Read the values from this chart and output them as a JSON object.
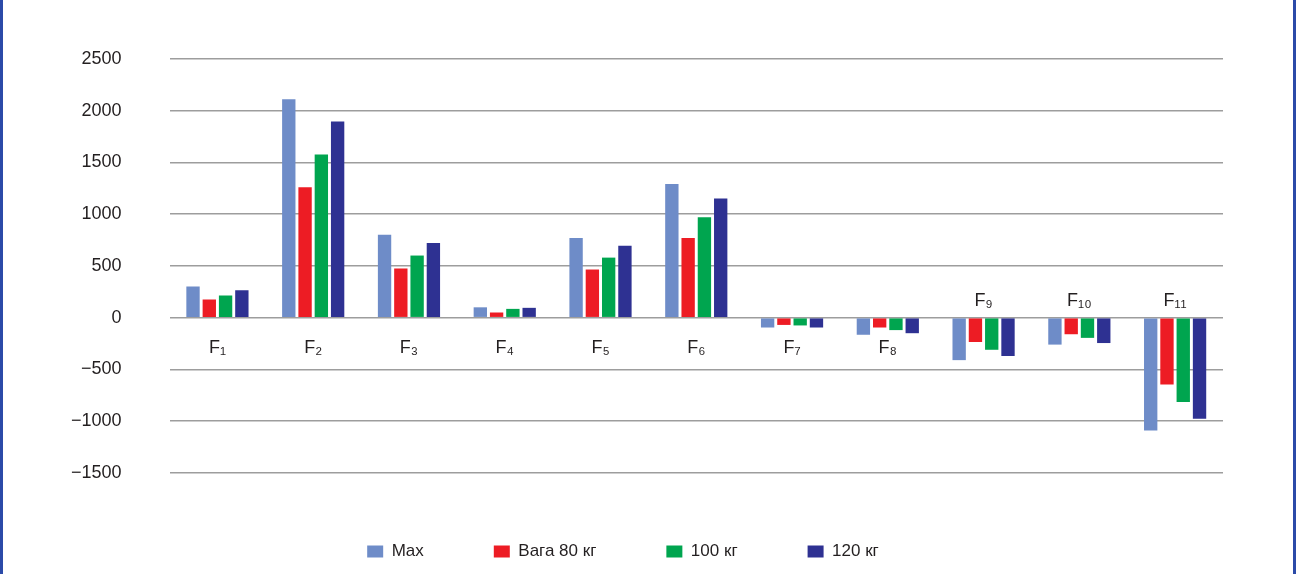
{
  "chart_data": {
    "type": "bar",
    "categories": [
      "F₁",
      "F₂",
      "F₃",
      "F₄",
      "F₅",
      "F₆",
      "F₇",
      "F₈",
      "F₉",
      "F₁₀",
      "F₁₁"
    ],
    "series": [
      {
        "name": "Max",
        "color": "#6e8cc8",
        "values": [
          300,
          2110,
          800,
          100,
          770,
          1290,
          -95,
          -165,
          -410,
          -260,
          -1090
        ]
      },
      {
        "name": "Вага 80 кг",
        "color": "#ed1c24",
        "values": [
          175,
          1260,
          475,
          50,
          465,
          770,
          -70,
          -95,
          -235,
          -160,
          -645
        ]
      },
      {
        "name": "100 кг",
        "color": "#00a54f",
        "values": [
          215,
          1575,
          600,
          85,
          580,
          970,
          -75,
          -120,
          -310,
          -195,
          -815
        ]
      },
      {
        "name": "120 кг",
        "color": "#2e3192",
        "values": [
          265,
          1895,
          720,
          95,
          695,
          1150,
          -95,
          -150,
          -370,
          -245,
          -975
        ]
      }
    ],
    "ylim": [
      -1500,
      2500
    ],
    "yticks": [
      -1500,
      -1000,
      -500,
      0,
      500,
      1000,
      1500,
      2000,
      2500
    ],
    "grid": "y",
    "legend": "bottom"
  }
}
